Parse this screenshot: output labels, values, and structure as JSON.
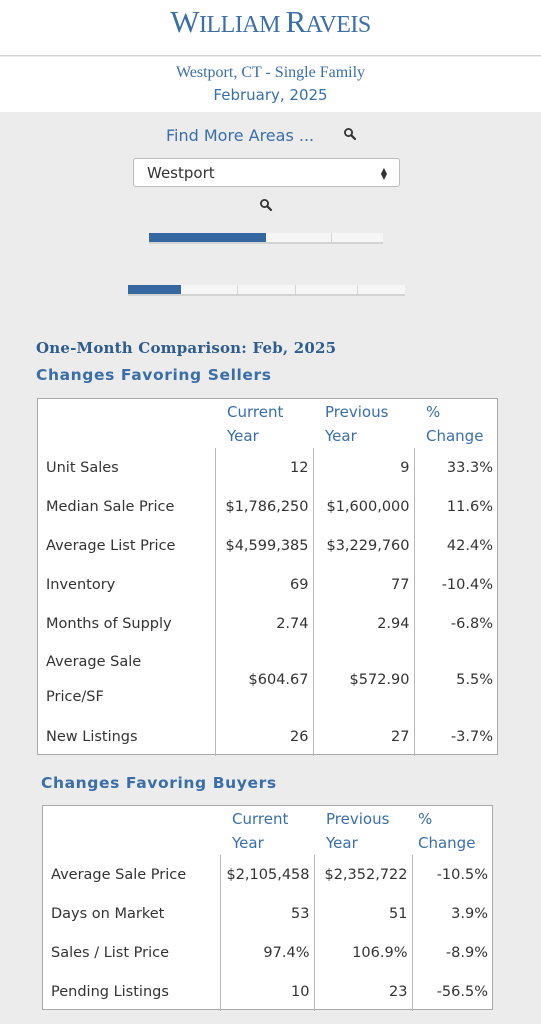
{
  "brand": {
    "logo_first": "W",
    "logo_mid1": "ILLIAM ",
    "logo_second": "R",
    "logo_mid2": "AVEIS"
  },
  "report": {
    "location": "Westport, CT - Single Family",
    "period": "February, 2025"
  },
  "search": {
    "find_more_label": "Find More Areas ...",
    "selected_area": "Westport"
  },
  "progress": {
    "top_bar_fraction": 0.5,
    "bottom_bar_fraction": 0.19
  },
  "comparison": {
    "title": "One-Month Comparison:  Feb, 2025"
  },
  "sellers": {
    "title": "Changes Favoring Sellers",
    "headers": {
      "current": [
        "Current",
        "Year"
      ],
      "previous": [
        "Previous",
        "Year"
      ],
      "change": [
        "%",
        "Change"
      ]
    },
    "rows": [
      {
        "label": "Unit Sales",
        "current": "12",
        "previous": "9",
        "change": "33.3%"
      },
      {
        "label": "Median Sale Price",
        "current": "$1,786,250",
        "previous": "$1,600,000",
        "change": "11.6%"
      },
      {
        "label": "Average List Price",
        "current": "$4,599,385",
        "previous": "$3,229,760",
        "change": "42.4%"
      },
      {
        "label": "Inventory",
        "current": "69",
        "previous": "77",
        "change": "-10.4%"
      },
      {
        "label": "Months of Supply",
        "current": "2.74",
        "previous": "2.94",
        "change": "-6.8%"
      },
      {
        "label": "Average Sale Price/SF",
        "label_line1": "Average Sale",
        "label_line2": "Price/SF",
        "current": "$604.67",
        "previous": "$572.90",
        "change": "5.5%"
      },
      {
        "label": "New Listings",
        "current": "26",
        "previous": "27",
        "change": "-3.7%"
      }
    ]
  },
  "buyers": {
    "title": "Changes Favoring Buyers",
    "headers": {
      "current": [
        "Current",
        "Year"
      ],
      "previous": [
        "Previous",
        "Year"
      ],
      "change": [
        "%",
        "Change"
      ]
    },
    "rows": [
      {
        "label": "Average Sale Price",
        "current": "$2,105,458",
        "previous": "$2,352,722",
        "change": "-10.5%"
      },
      {
        "label": "Days on Market",
        "current": "53",
        "previous": "51",
        "change": "3.9%"
      },
      {
        "label": "Sales / List Price",
        "current": "97.4%",
        "previous": "106.9%",
        "change": "-8.9%"
      },
      {
        "label": "Pending Listings",
        "current": "10",
        "previous": "23",
        "change": "-56.5%"
      }
    ]
  },
  "icons": {
    "search": "search-icon",
    "select_arrow": "updown-arrow-icon"
  },
  "colors": {
    "brand_blue": "#3c6fa7",
    "progress_fill": "#3567a0"
  }
}
